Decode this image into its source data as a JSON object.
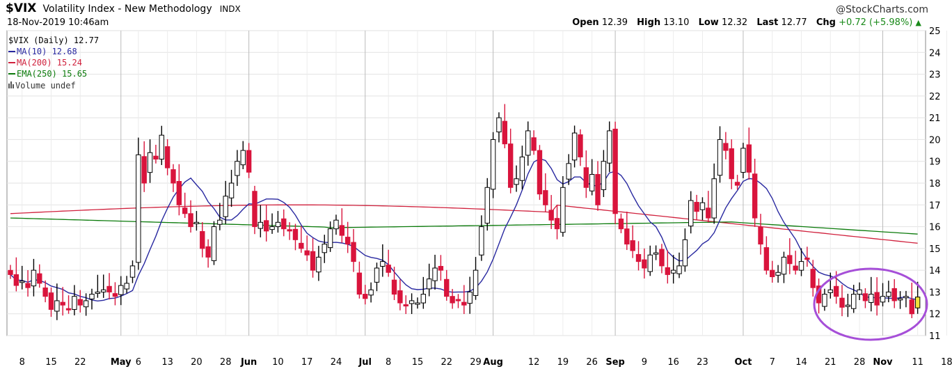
{
  "header": {
    "ticker": "$VIX",
    "name": "Volatility Index - New Methodology",
    "exchange": "INDX",
    "date": "18-Nov-2019 10:46am",
    "brand": "@StockCharts.com",
    "open_label": "Open",
    "open": "12.39",
    "high_label": "High",
    "high": "13.10",
    "low_label": "Low",
    "low": "12.32",
    "last_label": "Last",
    "last": "12.77",
    "chg_label": "Chg",
    "chg": "+0.72 (+5.98%)"
  },
  "legend": {
    "price": "$VIX (Daily) 12.77",
    "ma10": "MA(10) 12.68",
    "ma200": "MA(200) 15.24",
    "ema250": "EMA(250) 15.65",
    "volume": "Volume undef"
  },
  "colors": {
    "up": "#ffffff",
    "down": "#d9143c",
    "ma10": "#2828a0",
    "ma200": "#d0203c",
    "ema250": "#0a7a0a",
    "highlight_circle": "#a64fd8",
    "last_bar": "#f2e23a"
  },
  "chart_data": {
    "type": "candlestick",
    "title": "$VIX (Daily) 12.77",
    "ylim": [
      11,
      25
    ],
    "yticks": [
      11,
      12,
      13,
      14,
      15,
      16,
      17,
      18,
      19,
      20,
      21,
      22,
      23,
      24,
      25
    ],
    "x_tick_labels": [
      {
        "label": "8",
        "bar": 2
      },
      {
        "label": "15",
        "bar": 7
      },
      {
        "label": "22",
        "bar": 12
      },
      {
        "label": "May",
        "bar": 19,
        "month": true
      },
      {
        "label": "6",
        "bar": 22
      },
      {
        "label": "13",
        "bar": 27
      },
      {
        "label": "20",
        "bar": 32
      },
      {
        "label": "28",
        "bar": 37
      },
      {
        "label": "Jun",
        "bar": 41,
        "month": true
      },
      {
        "label": "10",
        "bar": 46
      },
      {
        "label": "17",
        "bar": 51
      },
      {
        "label": "24",
        "bar": 56
      },
      {
        "label": "Jul",
        "bar": 61,
        "month": true
      },
      {
        "label": "8",
        "bar": 65
      },
      {
        "label": "15",
        "bar": 70
      },
      {
        "label": "22",
        "bar": 75
      },
      {
        "label": "29",
        "bar": 80
      },
      {
        "label": "Aug",
        "bar": 83,
        "month": true
      },
      {
        "label": "12",
        "bar": 90
      },
      {
        "label": "19",
        "bar": 95
      },
      {
        "label": "26",
        "bar": 100
      },
      {
        "label": "Sep",
        "bar": 104,
        "month": true
      },
      {
        "label": "9",
        "bar": 109
      },
      {
        "label": "16",
        "bar": 114
      },
      {
        "label": "23",
        "bar": 119
      },
      {
        "label": "Oct",
        "bar": 126,
        "month": true
      },
      {
        "label": "7",
        "bar": 131
      },
      {
        "label": "14",
        "bar": 136
      },
      {
        "label": "21",
        "bar": 141
      },
      {
        "label": "28",
        "bar": 146
      },
      {
        "label": "Nov",
        "bar": 150,
        "month": true
      },
      {
        "label": "11",
        "bar": 156
      },
      {
        "label": "18",
        "bar": 161
      }
    ],
    "series_closes": [
      13.8,
      13.3,
      13.5,
      13.2,
      14.0,
      13.4,
      12.8,
      12.2,
      12.6,
      12.4,
      12.2,
      12.8,
      12.4,
      12.6,
      12.9,
      13.0,
      13.1,
      13.0,
      12.8,
      13.3,
      13.4,
      14.2,
      19.3,
      18.0,
      19.4,
      19.1,
      20.2,
      18.7,
      18.0,
      17.0,
      16.6,
      16.0,
      16.2,
      15.0,
      14.6,
      16.0,
      16.3,
      17.4,
      18.0,
      19.0,
      19.5,
      18.5,
      16.0,
      16.2,
      15.8,
      16.0,
      16.2,
      15.9,
      15.8,
      15.4,
      15.0,
      14.7,
      14.0,
      14.6,
      15.2,
      15.9,
      16.3,
      15.6,
      15.2,
      14.4,
      12.9,
      12.7,
      13.1,
      14.1,
      14.4,
      13.9,
      12.9,
      12.5,
      12.4,
      12.6,
      12.5,
      12.9,
      13.6,
      14.1,
      14.0,
      12.8,
      12.5,
      12.6,
      12.4,
      13.0,
      14.0,
      16.0,
      17.8,
      20.0,
      21.0,
      19.8,
      17.8,
      18.2,
      19.2,
      20.4,
      19.5,
      17.5,
      17.0,
      16.3,
      15.9,
      17.8,
      18.9,
      20.3,
      19.2,
      17.8,
      18.4,
      17.0,
      19.0,
      20.4,
      16.6,
      15.9,
      15.2,
      14.9,
      14.4,
      14.1,
      14.7,
      14.8,
      14.2,
      13.8,
      14.0,
      14.2,
      15.4,
      17.2,
      16.7,
      17.1,
      16.4,
      18.2,
      20.0,
      19.5,
      18.2,
      17.9,
      19.6,
      18.5,
      16.4,
      15.2,
      14.0,
      13.7,
      13.9,
      14.6,
      14.3,
      14.0,
      14.4,
      14.5,
      13.2,
      12.5,
      12.9,
      13.1,
      12.8,
      12.3,
      12.4,
      12.9,
      13.1,
      12.6,
      12.9,
      12.4,
      12.8,
      13.0,
      12.6,
      12.7,
      12.8,
      12.0,
      12.77
    ],
    "series": [
      {
        "name": "MA(10)",
        "last": 12.68
      },
      {
        "name": "MA(200)",
        "last": 15.24
      },
      {
        "name": "EMA(250)",
        "last": 15.65
      }
    ],
    "grid": true,
    "legend_position": "top-left"
  }
}
